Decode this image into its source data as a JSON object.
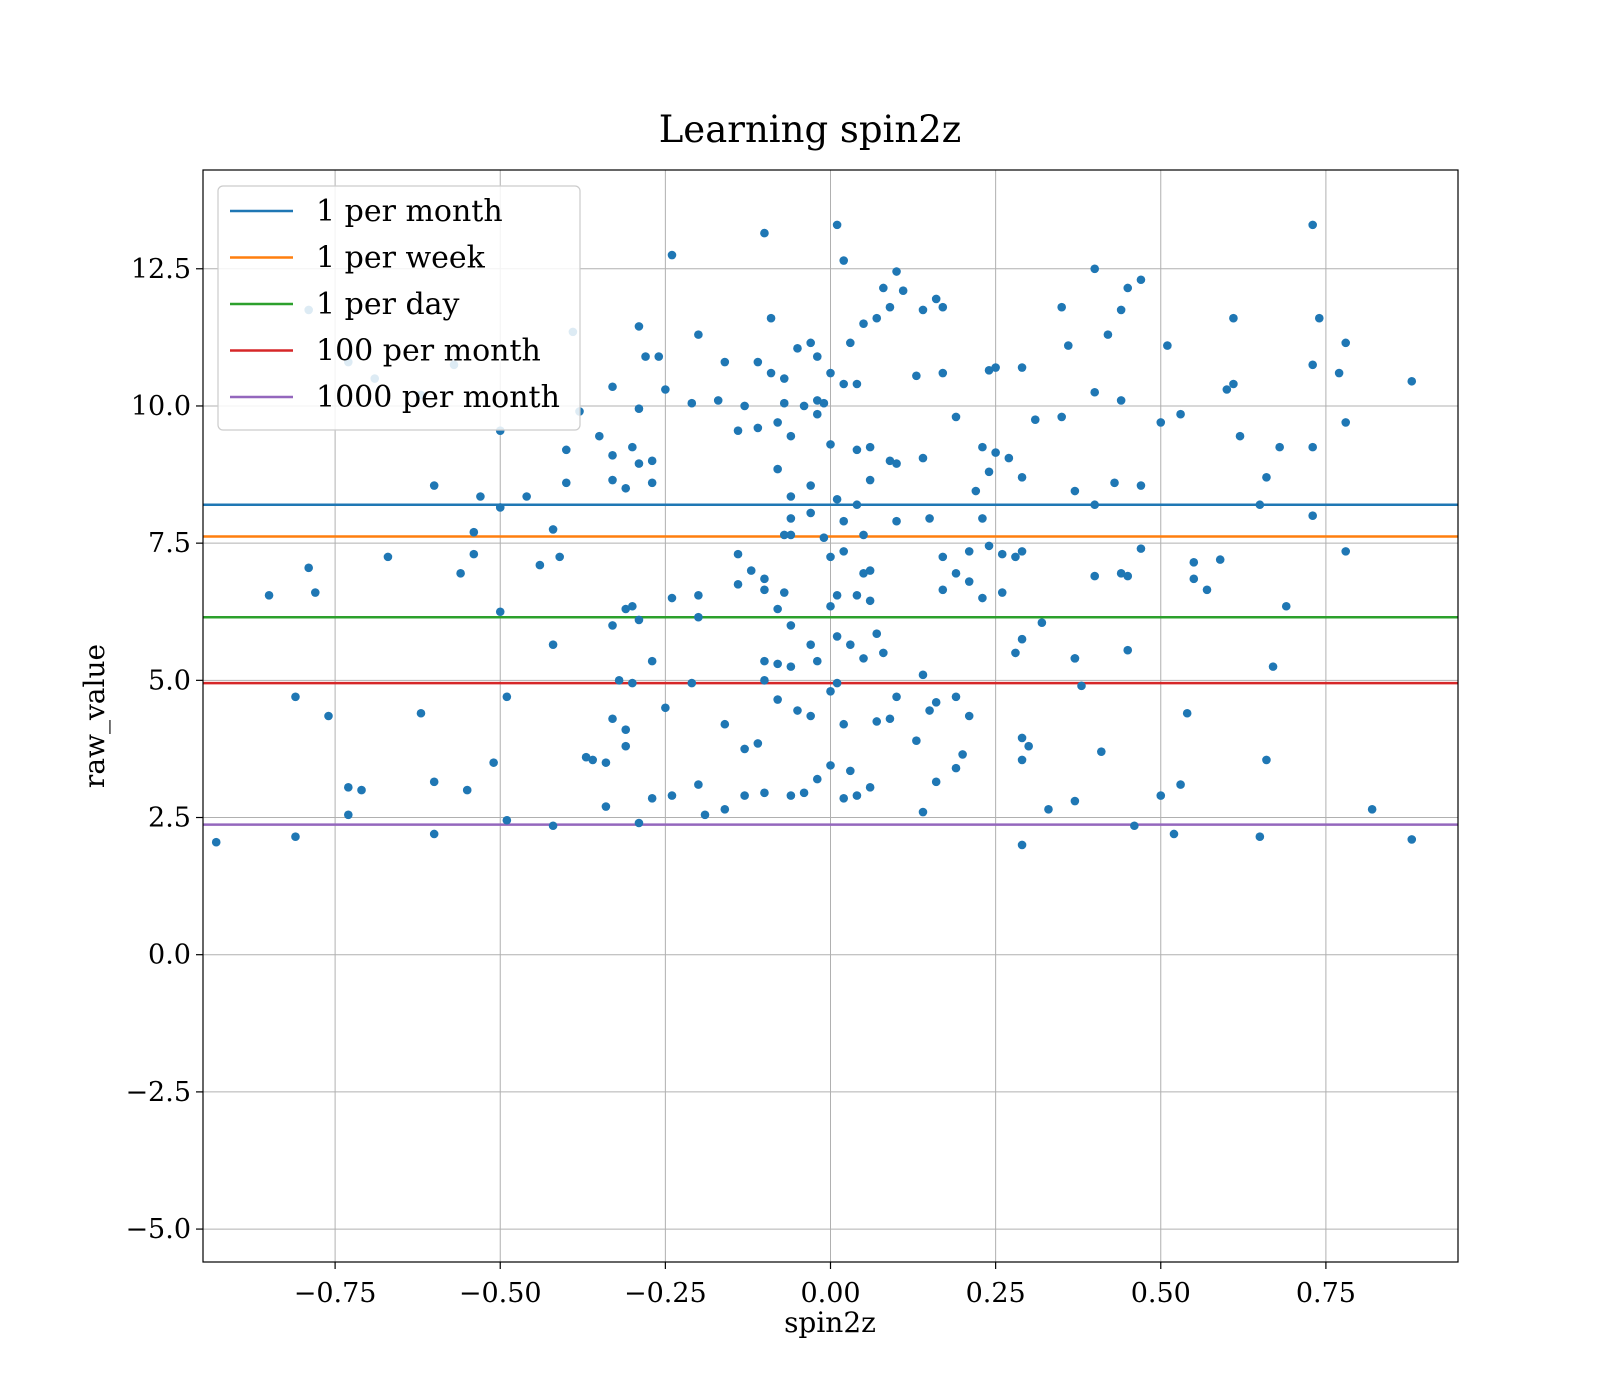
{
  "chart_data": {
    "type": "scatter",
    "title": "Learning spin2z",
    "xlabel": "spin2z",
    "ylabel": "raw_value",
    "xlim": [
      -0.95,
      0.95
    ],
    "ylim": [
      -5.6,
      14.3
    ],
    "xticks": [
      -0.75,
      -0.5,
      -0.25,
      0.0,
      0.25,
      0.5,
      0.75
    ],
    "xtick_labels": [
      "−0.75",
      "−0.50",
      "−0.25",
      "0.00",
      "0.25",
      "0.50",
      "0.75"
    ],
    "yticks": [
      -5.0,
      -2.5,
      0.0,
      2.5,
      5.0,
      7.5,
      10.0,
      12.5
    ],
    "ytick_labels": [
      "−5.0",
      "−2.5",
      "0.0",
      "2.5",
      "5.0",
      "7.5",
      "10.0",
      "12.5"
    ],
    "grid": true,
    "legend_position": "top-left",
    "point_color": "#1f77b4",
    "hlines": [
      {
        "name": "1 per month",
        "y": 8.2,
        "color": "#1f77b4"
      },
      {
        "name": "1 per week",
        "y": 7.62,
        "color": "#ff7f0e"
      },
      {
        "name": "1 per day",
        "y": 6.15,
        "color": "#2ca02c"
      },
      {
        "name": "100 per month",
        "y": 4.95,
        "color": "#d62728"
      },
      {
        "name": "1000 per month",
        "y": 2.37,
        "color": "#9467bd"
      }
    ],
    "points": [
      [
        -0.1,
        13.15
      ],
      [
        0.01,
        13.3
      ],
      [
        0.73,
        13.3
      ],
      [
        -0.24,
        12.75
      ],
      [
        0.02,
        12.65
      ],
      [
        0.1,
        12.45
      ],
      [
        0.4,
        12.5
      ],
      [
        0.47,
        12.3
      ],
      [
        0.45,
        12.15
      ],
      [
        0.08,
        12.15
      ],
      [
        0.11,
        12.1
      ],
      [
        0.16,
        11.95
      ],
      [
        0.17,
        11.8
      ],
      [
        0.14,
        11.75
      ],
      [
        0.09,
        11.8
      ],
      [
        0.07,
        11.6
      ],
      [
        0.05,
        11.5
      ],
      [
        -0.09,
        11.6
      ],
      [
        -0.29,
        11.45
      ],
      [
        -0.2,
        11.3
      ],
      [
        -0.39,
        11.35
      ],
      [
        -0.79,
        11.75
      ],
      [
        0.35,
        11.8
      ],
      [
        0.44,
        11.75
      ],
      [
        0.61,
        11.6
      ],
      [
        0.74,
        11.6
      ],
      [
        0.42,
        11.3
      ],
      [
        0.51,
        11.1
      ],
      [
        0.78,
        11.15
      ],
      [
        0.03,
        11.15
      ],
      [
        -0.03,
        11.15
      ],
      [
        -0.05,
        11.05
      ],
      [
        -0.02,
        10.9
      ],
      [
        -0.11,
        10.8
      ],
      [
        -0.16,
        10.8
      ],
      [
        -0.28,
        10.9
      ],
      [
        -0.26,
        10.9
      ],
      [
        -0.09,
        10.6
      ],
      [
        -0.07,
        10.5
      ],
      [
        0.0,
        10.6
      ],
      [
        0.02,
        10.4
      ],
      [
        0.04,
        10.4
      ],
      [
        0.13,
        10.55
      ],
      [
        0.17,
        10.6
      ],
      [
        0.24,
        10.65
      ],
      [
        0.25,
        10.7
      ],
      [
        0.29,
        10.7
      ],
      [
        0.36,
        11.1
      ],
      [
        0.73,
        10.75
      ],
      [
        0.77,
        10.6
      ],
      [
        0.88,
        10.45
      ],
      [
        0.6,
        10.3
      ],
      [
        0.61,
        10.4
      ],
      [
        0.4,
        10.25
      ],
      [
        0.44,
        10.1
      ],
      [
        0.35,
        9.8
      ],
      [
        0.31,
        9.75
      ],
      [
        -0.02,
        10.1
      ],
      [
        -0.01,
        10.05
      ],
      [
        -0.04,
        10.0
      ],
      [
        -0.07,
        10.05
      ],
      [
        -0.13,
        10.0
      ],
      [
        -0.17,
        10.1
      ],
      [
        -0.21,
        10.05
      ],
      [
        -0.25,
        10.3
      ],
      [
        -0.29,
        9.95
      ],
      [
        -0.33,
        10.35
      ],
      [
        -0.38,
        9.9
      ],
      [
        -0.62,
        10.2
      ],
      [
        -0.69,
        10.5
      ],
      [
        -0.73,
        10.8
      ],
      [
        -0.57,
        10.75
      ],
      [
        -0.5,
        9.55
      ],
      [
        -0.4,
        9.2
      ],
      [
        -0.35,
        9.45
      ],
      [
        -0.3,
        9.25
      ],
      [
        -0.33,
        9.1
      ],
      [
        -0.29,
        8.95
      ],
      [
        -0.27,
        9.0
      ],
      [
        -0.14,
        9.55
      ],
      [
        -0.11,
        9.6
      ],
      [
        -0.08,
        9.7
      ],
      [
        -0.06,
        9.45
      ],
      [
        -0.02,
        9.85
      ],
      [
        0.0,
        9.3
      ],
      [
        0.04,
        9.2
      ],
      [
        0.06,
        9.25
      ],
      [
        0.09,
        9.0
      ],
      [
        0.1,
        8.95
      ],
      [
        0.14,
        9.05
      ],
      [
        0.19,
        9.8
      ],
      [
        0.23,
        9.25
      ],
      [
        0.25,
        9.15
      ],
      [
        0.27,
        9.05
      ],
      [
        0.29,
        8.7
      ],
      [
        0.24,
        8.8
      ],
      [
        0.37,
        8.45
      ],
      [
        0.43,
        8.6
      ],
      [
        0.47,
        8.55
      ],
      [
        0.5,
        9.7
      ],
      [
        0.53,
        9.85
      ],
      [
        0.62,
        9.45
      ],
      [
        0.66,
        8.7
      ],
      [
        0.68,
        9.25
      ],
      [
        0.73,
        9.25
      ],
      [
        0.78,
        9.7
      ],
      [
        -0.4,
        8.6
      ],
      [
        -0.46,
        8.35
      ],
      [
        -0.53,
        8.35
      ],
      [
        -0.6,
        8.55
      ],
      [
        -0.31,
        8.5
      ],
      [
        -0.27,
        8.6
      ],
      [
        -0.33,
        8.65
      ],
      [
        -0.08,
        8.85
      ],
      [
        -0.03,
        8.55
      ],
      [
        0.01,
        8.3
      ],
      [
        0.04,
        8.2
      ],
      [
        0.06,
        8.65
      ],
      [
        -0.06,
        8.35
      ],
      [
        0.22,
        8.45
      ],
      [
        0.4,
        8.2
      ],
      [
        0.65,
        8.2
      ],
      [
        0.73,
        8.0
      ],
      [
        0.15,
        7.95
      ],
      [
        0.23,
        7.95
      ],
      [
        0.1,
        7.9
      ],
      [
        0.02,
        7.9
      ],
      [
        -0.06,
        7.95
      ],
      [
        -0.03,
        8.05
      ],
      [
        -0.07,
        7.65
      ],
      [
        -0.06,
        7.65
      ],
      [
        -0.01,
        7.6
      ],
      [
        0.05,
        7.65
      ],
      [
        -0.5,
        8.15
      ],
      [
        -0.42,
        7.75
      ],
      [
        -0.54,
        7.7
      ],
      [
        -0.44,
        7.1
      ],
      [
        -0.41,
        7.25
      ],
      [
        -0.54,
        7.3
      ],
      [
        -0.56,
        6.95
      ],
      [
        -0.67,
        7.25
      ],
      [
        -0.79,
        7.05
      ],
      [
        -0.78,
        6.6
      ],
      [
        -0.85,
        6.55
      ],
      [
        -0.14,
        7.3
      ],
      [
        -0.12,
        7.0
      ],
      [
        -0.1,
        6.85
      ],
      [
        -0.14,
        6.75
      ],
      [
        0.0,
        7.25
      ],
      [
        0.02,
        7.35
      ],
      [
        0.06,
        7.0
      ],
      [
        0.05,
        6.95
      ],
      [
        0.17,
        7.25
      ],
      [
        0.21,
        7.35
      ],
      [
        0.24,
        7.45
      ],
      [
        0.26,
        7.3
      ],
      [
        0.28,
        7.25
      ],
      [
        0.29,
        7.35
      ],
      [
        0.47,
        7.4
      ],
      [
        0.55,
        7.15
      ],
      [
        0.59,
        7.2
      ],
      [
        0.78,
        7.35
      ],
      [
        -0.24,
        6.5
      ],
      [
        -0.2,
        6.55
      ],
      [
        -0.1,
        6.65
      ],
      [
        -0.07,
        6.6
      ],
      [
        0.0,
        6.35
      ],
      [
        0.01,
        6.55
      ],
      [
        0.04,
        6.55
      ],
      [
        0.06,
        6.45
      ],
      [
        0.17,
        6.65
      ],
      [
        0.19,
        6.95
      ],
      [
        0.21,
        6.8
      ],
      [
        0.23,
        6.5
      ],
      [
        0.26,
        6.6
      ],
      [
        0.4,
        6.9
      ],
      [
        0.44,
        6.95
      ],
      [
        0.45,
        6.9
      ],
      [
        0.55,
        6.85
      ],
      [
        0.57,
        6.65
      ],
      [
        0.69,
        6.35
      ],
      [
        -0.5,
        6.25
      ],
      [
        -0.31,
        6.3
      ],
      [
        -0.3,
        6.35
      ],
      [
        -0.33,
        6.0
      ],
      [
        -0.29,
        6.1
      ],
      [
        -0.2,
        6.15
      ],
      [
        -0.08,
        6.3
      ],
      [
        -0.06,
        6.0
      ],
      [
        -0.03,
        5.65
      ],
      [
        0.01,
        5.8
      ],
      [
        0.07,
        5.85
      ],
      [
        0.08,
        5.5
      ],
      [
        0.05,
        5.4
      ],
      [
        0.03,
        5.65
      ],
      [
        -0.08,
        5.3
      ],
      [
        -0.1,
        5.35
      ],
      [
        -0.06,
        5.25
      ],
      [
        -0.02,
        5.35
      ],
      [
        -0.42,
        5.65
      ],
      [
        -0.27,
        5.35
      ],
      [
        -0.32,
        5.0
      ],
      [
        -0.3,
        4.95
      ],
      [
        -0.21,
        4.95
      ],
      [
        0.28,
        5.5
      ],
      [
        0.29,
        5.75
      ],
      [
        0.32,
        6.05
      ],
      [
        0.37,
        5.4
      ],
      [
        0.45,
        5.55
      ],
      [
        0.67,
        5.25
      ],
      [
        -0.1,
        5.0
      ],
      [
        0.01,
        4.95
      ],
      [
        0.0,
        4.8
      ],
      [
        0.14,
        5.1
      ],
      [
        0.1,
        4.7
      ],
      [
        0.16,
        4.6
      ],
      [
        -0.76,
        4.35
      ],
      [
        -0.81,
        4.7
      ],
      [
        -0.62,
        4.4
      ],
      [
        -0.49,
        4.7
      ],
      [
        -0.33,
        4.3
      ],
      [
        -0.31,
        4.1
      ],
      [
        -0.25,
        4.5
      ],
      [
        -0.16,
        4.2
      ],
      [
        -0.13,
        3.75
      ],
      [
        -0.11,
        3.85
      ],
      [
        -0.08,
        4.65
      ],
      [
        -0.05,
        4.45
      ],
      [
        -0.03,
        4.35
      ],
      [
        0.02,
        4.2
      ],
      [
        0.07,
        4.25
      ],
      [
        0.09,
        4.3
      ],
      [
        0.13,
        3.9
      ],
      [
        0.21,
        4.35
      ],
      [
        0.19,
        4.7
      ],
      [
        0.15,
        4.45
      ],
      [
        0.29,
        3.95
      ],
      [
        0.3,
        3.8
      ],
      [
        0.37,
        5.4
      ],
      [
        0.54,
        4.4
      ],
      [
        0.38,
        4.9
      ],
      [
        0.41,
        3.7
      ],
      [
        0.29,
        3.55
      ],
      [
        0.2,
        3.65
      ],
      [
        0.16,
        3.15
      ],
      [
        0.19,
        3.4
      ],
      [
        0.14,
        2.6
      ],
      [
        0.06,
        3.05
      ],
      [
        0.03,
        3.35
      ],
      [
        0.0,
        3.45
      ],
      [
        -0.02,
        3.2
      ],
      [
        -0.04,
        2.95
      ],
      [
        -0.06,
        2.9
      ],
      [
        -0.1,
        2.95
      ],
      [
        -0.13,
        2.9
      ],
      [
        -0.16,
        2.65
      ],
      [
        -0.19,
        2.55
      ],
      [
        -0.2,
        3.1
      ],
      [
        -0.24,
        2.9
      ],
      [
        -0.27,
        2.85
      ],
      [
        -0.29,
        2.4
      ],
      [
        -0.34,
        2.7
      ],
      [
        -0.36,
        3.55
      ],
      [
        -0.37,
        3.6
      ],
      [
        -0.34,
        3.5
      ],
      [
        -0.31,
        3.8
      ],
      [
        -0.51,
        3.5
      ],
      [
        -0.55,
        3.0
      ],
      [
        -0.6,
        3.15
      ],
      [
        -0.71,
        3.0
      ],
      [
        -0.73,
        3.05
      ],
      [
        -0.73,
        2.55
      ],
      [
        -0.6,
        2.2
      ],
      [
        -0.81,
        2.15
      ],
      [
        -0.93,
        2.05
      ],
      [
        -0.42,
        2.35
      ],
      [
        0.29,
        2.0
      ],
      [
        0.33,
        2.65
      ],
      [
        0.37,
        2.8
      ],
      [
        0.5,
        2.9
      ],
      [
        0.53,
        3.1
      ],
      [
        0.66,
        3.55
      ],
      [
        0.82,
        2.65
      ],
      [
        0.88,
        2.1
      ],
      [
        0.65,
        2.15
      ],
      [
        0.46,
        2.35
      ],
      [
        0.52,
        2.2
      ],
      [
        -0.49,
        2.45
      ],
      [
        0.02,
        2.85
      ],
      [
        0.04,
        2.9
      ]
    ]
  }
}
